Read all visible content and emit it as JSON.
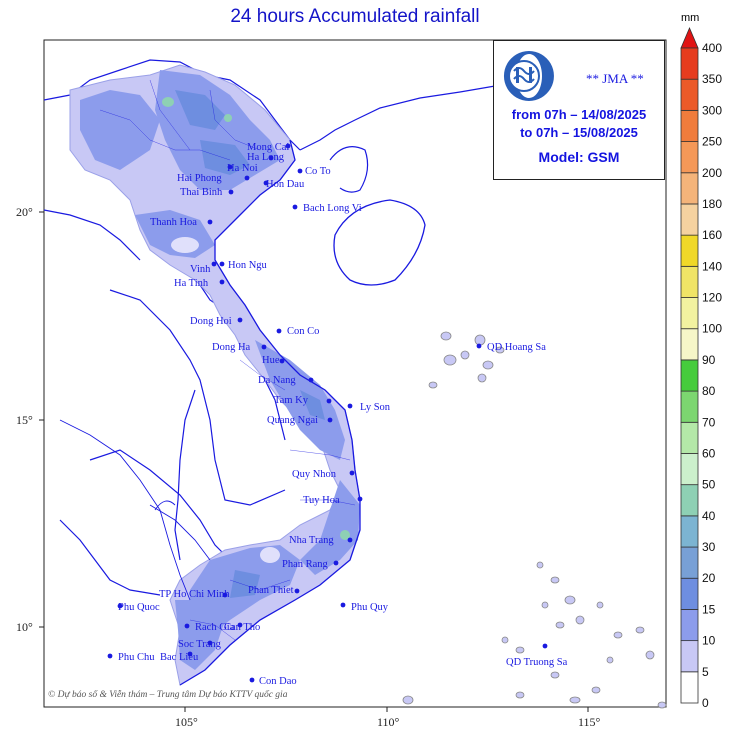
{
  "title": "24 hours Accumulated rainfall",
  "info": {
    "agency": "** JMA **",
    "period_from": "from 07h – 14/08/2025",
    "period_to": "to 07h – 15/08/2025",
    "model": "Model: GSM"
  },
  "credit": "© Dự báo số & Viễn thám – Trung tâm Dự báo KTTV quốc gia",
  "legend": {
    "unit": "mm",
    "levels": [
      {
        "value": "0",
        "color": "#ffffff"
      },
      {
        "value": "5",
        "color": "#c8c8f5"
      },
      {
        "value": "10",
        "color": "#8c9cec"
      },
      {
        "value": "15",
        "color": "#6e8ee0"
      },
      {
        "value": "20",
        "color": "#78a0d6"
      },
      {
        "value": "30",
        "color": "#7cb4d2"
      },
      {
        "value": "40",
        "color": "#8ed0b4"
      },
      {
        "value": "50",
        "color": "#ccf0cc"
      },
      {
        "value": "60",
        "color": "#b4e8a8"
      },
      {
        "value": "70",
        "color": "#7cd670"
      },
      {
        "value": "80",
        "color": "#46cc3c"
      },
      {
        "value": "90",
        "color": "#f6f6c8"
      },
      {
        "value": "100",
        "color": "#f2f2a0"
      },
      {
        "value": "120",
        "color": "#f0e466"
      },
      {
        "value": "140",
        "color": "#f0d828"
      },
      {
        "value": "160",
        "color": "#f5d2a0"
      },
      {
        "value": "180",
        "color": "#f4b47a"
      },
      {
        "value": "200",
        "color": "#f49858"
      },
      {
        "value": "250",
        "color": "#f07c3c"
      },
      {
        "value": "300",
        "color": "#ec5a28"
      },
      {
        "value": "350",
        "color": "#e63c1e"
      },
      {
        "value": "400",
        "color": "#e01414"
      }
    ]
  },
  "axes": {
    "lon_ticks": [
      "105°",
      "110°",
      "115°"
    ],
    "lat_ticks": [
      "20°",
      "15°",
      "10°"
    ]
  },
  "places": [
    {
      "name": "Mong Cai"
    },
    {
      "name": "Ha Long"
    },
    {
      "name": "Co To"
    },
    {
      "name": "Ha Noi"
    },
    {
      "name": "Hai Phong"
    },
    {
      "name": "Hon Dau"
    },
    {
      "name": "Thai Binh"
    },
    {
      "name": "Bach Long Vi"
    },
    {
      "name": "Thanh Hoa"
    },
    {
      "name": "Vinh"
    },
    {
      "name": "Hon Ngu"
    },
    {
      "name": "Ha Tinh"
    },
    {
      "name": "Dong Hoi"
    },
    {
      "name": "Con Co"
    },
    {
      "name": "Dong Ha"
    },
    {
      "name": "Hue"
    },
    {
      "name": "Da Nang"
    },
    {
      "name": "QD Hoang Sa"
    },
    {
      "name": "Tam Ky"
    },
    {
      "name": "Ly Son"
    },
    {
      "name": "Quang Ngai"
    },
    {
      "name": "Quy Nhon"
    },
    {
      "name": "Tuy Hoa"
    },
    {
      "name": "Nha Trang"
    },
    {
      "name": "Phan Rang"
    },
    {
      "name": "Phan Thiet"
    },
    {
      "name": "TP Ho Chi Minh"
    },
    {
      "name": "Phu Quoc"
    },
    {
      "name": "Phu Quy"
    },
    {
      "name": "Rach Gia"
    },
    {
      "name": "Can Tho"
    },
    {
      "name": "Soc Trang"
    },
    {
      "name": "Phu Chu"
    },
    {
      "name": "Bac Lieu"
    },
    {
      "name": "QD Truong Sa"
    },
    {
      "name": "Con Dao"
    }
  ]
}
